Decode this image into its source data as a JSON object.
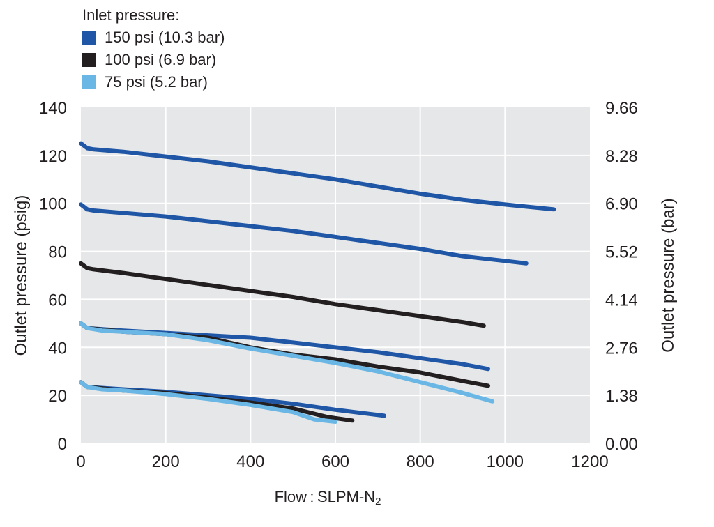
{
  "chart_data": {
    "type": "line",
    "legend": {
      "title": "Inlet pressure:",
      "placement": "top-left"
    },
    "series": [
      {
        "name": "150 psi (10.3 bar)",
        "color": "#1f56a6"
      },
      {
        "name": "100 psi (6.9 bar)",
        "color": "#231f20"
      },
      {
        "name": "75 psi (5.2 bar)",
        "color": "#6ab7e6"
      }
    ],
    "curves": [
      {
        "series": 0,
        "points": [
          [
            0,
            125
          ],
          [
            15,
            123
          ],
          [
            30,
            122.5
          ],
          [
            100,
            121.5
          ],
          [
            200,
            119.5
          ],
          [
            300,
            117.5
          ],
          [
            400,
            115
          ],
          [
            500,
            112.5
          ],
          [
            600,
            110
          ],
          [
            700,
            107
          ],
          [
            800,
            104
          ],
          [
            900,
            101.5
          ],
          [
            1000,
            99.5
          ],
          [
            1115,
            97.5
          ]
        ]
      },
      {
        "series": 0,
        "points": [
          [
            0,
            99.5
          ],
          [
            15,
            97.5
          ],
          [
            30,
            97
          ],
          [
            100,
            96
          ],
          [
            200,
            94.5
          ],
          [
            300,
            92.5
          ],
          [
            400,
            90.5
          ],
          [
            500,
            88.5
          ],
          [
            600,
            86
          ],
          [
            700,
            83.5
          ],
          [
            800,
            81
          ],
          [
            900,
            78
          ],
          [
            1000,
            76
          ],
          [
            1050,
            75
          ]
        ]
      },
      {
        "series": 0,
        "points": [
          [
            0,
            50
          ],
          [
            15,
            48
          ],
          [
            100,
            47
          ],
          [
            200,
            46
          ],
          [
            300,
            45
          ],
          [
            400,
            44
          ],
          [
            500,
            42
          ],
          [
            600,
            40
          ],
          [
            700,
            38
          ],
          [
            800,
            35.5
          ],
          [
            900,
            33
          ],
          [
            960,
            31
          ]
        ]
      },
      {
        "series": 0,
        "points": [
          [
            0,
            25.5
          ],
          [
            15,
            23.5
          ],
          [
            100,
            22.5
          ],
          [
            200,
            21.5
          ],
          [
            300,
            20
          ],
          [
            400,
            18.5
          ],
          [
            500,
            16.5
          ],
          [
            600,
            14
          ],
          [
            715,
            11.5
          ]
        ]
      },
      {
        "series": 1,
        "points": [
          [
            0,
            75
          ],
          [
            15,
            73
          ],
          [
            30,
            72.5
          ],
          [
            100,
            71
          ],
          [
            200,
            68.5
          ],
          [
            300,
            66
          ],
          [
            400,
            63.5
          ],
          [
            500,
            61
          ],
          [
            600,
            58
          ],
          [
            700,
            55.5
          ],
          [
            800,
            53
          ],
          [
            900,
            50.5
          ],
          [
            950,
            49
          ]
        ]
      },
      {
        "series": 1,
        "points": [
          [
            0,
            50
          ],
          [
            15,
            48
          ],
          [
            100,
            46.5
          ],
          [
            200,
            45.5
          ],
          [
            300,
            44
          ],
          [
            400,
            40
          ],
          [
            500,
            37
          ],
          [
            600,
            35
          ],
          [
            700,
            32
          ],
          [
            800,
            29.5
          ],
          [
            900,
            26
          ],
          [
            960,
            24
          ]
        ]
      },
      {
        "series": 1,
        "points": [
          [
            0,
            25.5
          ],
          [
            15,
            23.5
          ],
          [
            100,
            22
          ],
          [
            200,
            21
          ],
          [
            300,
            19
          ],
          [
            400,
            17
          ],
          [
            500,
            14.5
          ],
          [
            580,
            11
          ],
          [
            640,
            9.5
          ]
        ]
      },
      {
        "series": 2,
        "points": [
          [
            0,
            50
          ],
          [
            15,
            48
          ],
          [
            50,
            47
          ],
          [
            100,
            46.5
          ],
          [
            200,
            45.5
          ],
          [
            300,
            43
          ],
          [
            400,
            39.5
          ],
          [
            500,
            36.5
          ],
          [
            600,
            33.5
          ],
          [
            700,
            30
          ],
          [
            800,
            25.5
          ],
          [
            900,
            21
          ],
          [
            970,
            17.5
          ]
        ]
      },
      {
        "series": 2,
        "points": [
          [
            0,
            25.5
          ],
          [
            15,
            23.5
          ],
          [
            50,
            22.5
          ],
          [
            100,
            22
          ],
          [
            200,
            20.5
          ],
          [
            300,
            18.5
          ],
          [
            400,
            16
          ],
          [
            500,
            13
          ],
          [
            550,
            10
          ],
          [
            600,
            9
          ]
        ]
      }
    ],
    "xlabel": "Flow : SLPM-N",
    "xlabel_sub": "2",
    "ylabel_left": "Outlet pressure (psig)",
    "ylabel_right": "Outlet pressure (bar)",
    "xlim": [
      0,
      1200
    ],
    "ylim": [
      0,
      140
    ],
    "x_ticks": [
      0,
      200,
      400,
      600,
      800,
      1000,
      1200
    ],
    "y_ticks_left": [
      0,
      20,
      40,
      60,
      80,
      100,
      120,
      140
    ],
    "y_ticks_right": [
      "0.00",
      "1.38",
      "2.76",
      "4.14",
      "5.52",
      "6.90",
      "8.28",
      "9.66"
    ],
    "grid": true,
    "plot_bg": "#e6e7e8",
    "grid_color": "#ffffff"
  }
}
